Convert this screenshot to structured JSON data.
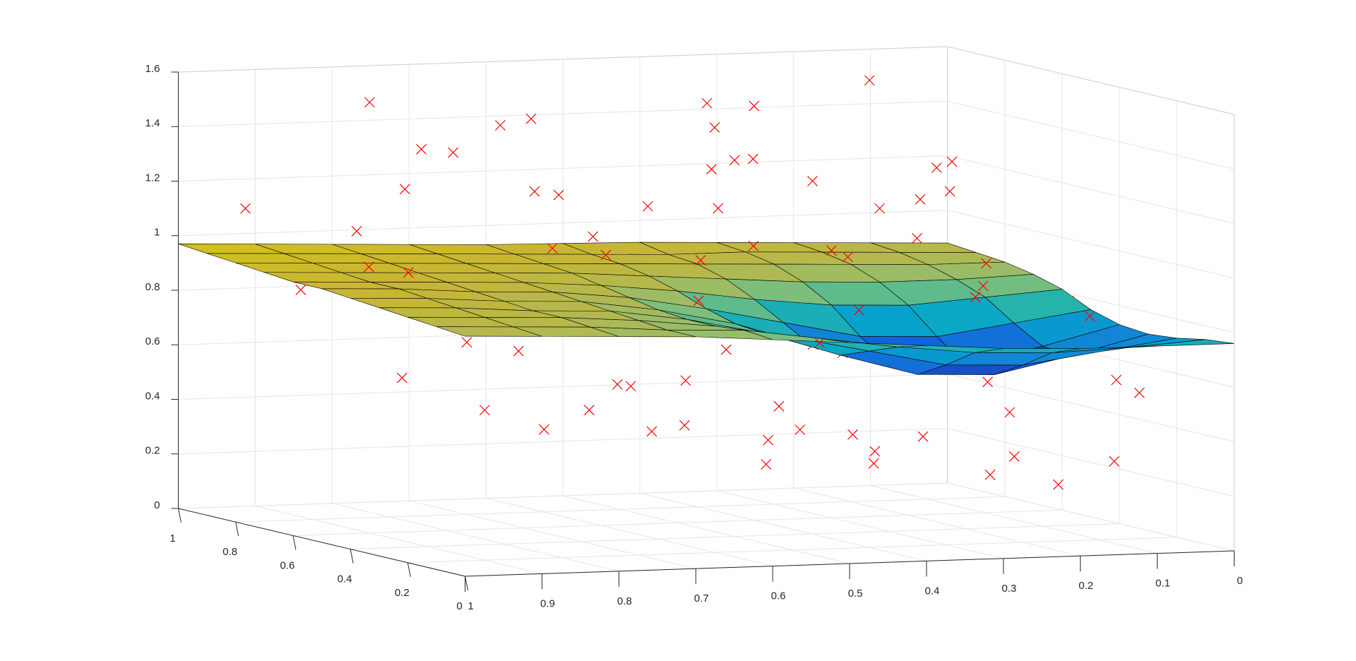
{
  "chart_data": {
    "type": "surface",
    "xlim": [
      0,
      1
    ],
    "xticks": [
      0,
      0.1,
      0.2,
      0.3,
      0.4,
      0.5,
      0.6,
      0.7,
      0.8,
      0.9,
      1
    ],
    "ylim": [
      0,
      1
    ],
    "yticks": [
      0,
      0.2,
      0.4,
      0.6,
      0.8,
      1
    ],
    "zlim": [
      0,
      1.6
    ],
    "zticks": [
      0,
      0.2,
      0.4,
      0.6,
      0.8,
      1,
      1.2,
      1.4,
      1.6
    ],
    "grid": true,
    "colormap": [
      "#352a87",
      "#0f5cdd",
      "#1481d6",
      "#06a4ca",
      "#2eb7a4",
      "#87bf77",
      "#b5b84e",
      "#c9b630",
      "#d4c21c"
    ],
    "edge_color": "#000000",
    "surface": {
      "x": [
        0,
        0.1,
        0.2,
        0.3,
        0.4,
        0.5,
        0.6,
        0.7,
        0.8,
        0.9,
        1
      ],
      "y": [
        0,
        0.1,
        0.2,
        0.3,
        0.4,
        0.5,
        0.6,
        0.7,
        0.8,
        0.9,
        1
      ],
      "z": [
        [
          0.76,
          0.76,
          0.76,
          0.77,
          0.79,
          0.81,
          0.83,
          0.85,
          0.86,
          0.87,
          0.88
        ],
        [
          0.75,
          0.73,
          0.72,
          0.73,
          0.76,
          0.8,
          0.84,
          0.85,
          0.87,
          0.88,
          0.89
        ],
        [
          0.73,
          0.69,
          0.65,
          0.66,
          0.72,
          0.78,
          0.83,
          0.86,
          0.88,
          0.89,
          0.9
        ],
        [
          0.72,
          0.65,
          0.59,
          0.6,
          0.68,
          0.77,
          0.83,
          0.87,
          0.88,
          0.9,
          0.91
        ],
        [
          0.73,
          0.66,
          0.6,
          0.62,
          0.69,
          0.78,
          0.84,
          0.88,
          0.89,
          0.91,
          0.92
        ],
        [
          0.76,
          0.72,
          0.68,
          0.69,
          0.75,
          0.81,
          0.86,
          0.89,
          0.9,
          0.92,
          0.93
        ],
        [
          0.81,
          0.79,
          0.77,
          0.78,
          0.81,
          0.85,
          0.88,
          0.9,
          0.91,
          0.92,
          0.93
        ],
        [
          0.84,
          0.83,
          0.83,
          0.84,
          0.86,
          0.88,
          0.9,
          0.91,
          0.92,
          0.93,
          0.94
        ],
        [
          0.86,
          0.86,
          0.87,
          0.88,
          0.89,
          0.9,
          0.91,
          0.92,
          0.93,
          0.94,
          0.95
        ],
        [
          0.87,
          0.88,
          0.89,
          0.9,
          0.9,
          0.91,
          0.92,
          0.93,
          0.94,
          0.95,
          0.96
        ],
        [
          0.88,
          0.89,
          0.9,
          0.91,
          0.92,
          0.925,
          0.93,
          0.94,
          0.95,
          0.96,
          0.97
        ]
      ]
    },
    "scatter": {
      "color": "#ff0000",
      "x": [
        0.95,
        0.9,
        0.85,
        0.8,
        0.78,
        0.72,
        0.7,
        0.66,
        0.62,
        0.6,
        0.57,
        0.55,
        0.52,
        0.5,
        0.48,
        0.45,
        0.42,
        0.4,
        0.38,
        0.35,
        0.33,
        0.3,
        0.28,
        0.25,
        0.22,
        0.2,
        0.18,
        0.15,
        0.12,
        0.1,
        0.08,
        0.05,
        0.03,
        0.02,
        0.97,
        0.88,
        0.82,
        0.75,
        0.68,
        0.64,
        0.58,
        0.53,
        0.47,
        0.43,
        0.37,
        0.32,
        0.27,
        0.23,
        0.17,
        0.13,
        0.07,
        0.04,
        0.92,
        0.86,
        0.74,
        0.69,
        0.61,
        0.56,
        0.49,
        0.41,
        0.36,
        0.29,
        0.21,
        0.14,
        0.09,
        0.06,
        0.99,
        0.83,
        0.71,
        0.63,
        0.51,
        0.44,
        0.34,
        0.26,
        0.19,
        0.11,
        0.01,
        0.77,
        0.59,
        0.39
      ],
      "y": [
        0.9,
        0.2,
        0.6,
        0.35,
        0.8,
        0.1,
        0.5,
        0.7,
        0.25,
        0.95,
        0.4,
        0.15,
        0.65,
        0.85,
        0.3,
        0.05,
        0.55,
        0.75,
        0.45,
        0.9,
        0.2,
        0.6,
        0.1,
        0.8,
        0.4,
        0.7,
        0.3,
        0.5,
        0.95,
        0.15,
        0.65,
        0.85,
        0.25,
        0.45,
        0.3,
        0.7,
        0.05,
        0.55,
        0.9,
        0.2,
        0.8,
        0.35,
        0.6,
        0.1,
        0.75,
        0.45,
        0.95,
        0.15,
        0.65,
        0.4,
        0.85,
        0.5,
        0.55,
        0.1,
        0.85,
        0.3,
        0.6,
        0.95,
        0.2,
        0.7,
        0.4,
        0.9,
        0.05,
        0.5,
        0.75,
        0.25,
        0.6,
        0.45,
        0.2,
        0.75,
        0.5,
        0.15,
        0.9,
        0.65,
        0.35,
        0.8,
        0.55,
        0.95,
        0.05,
        0.4
      ],
      "z": [
        1.12,
        0.55,
        0.95,
        0.72,
        1.2,
        0.48,
        1.05,
        0.88,
        0.62,
        1.38,
        0.78,
        0.42,
        1.15,
        0.92,
        0.5,
        0.35,
        1.02,
        1.25,
        0.68,
        1.45,
        0.4,
        0.98,
        0.28,
        1.18,
        0.6,
        1.1,
        0.45,
        0.82,
        1.5,
        0.3,
        0.9,
        1.22,
        0.52,
        0.75,
        0.65,
        1.08,
        0.58,
        0.85,
        1.3,
        0.47,
        1.16,
        0.7,
        0.96,
        0.38,
        1.28,
        0.8,
        1.42,
        0.33,
        1.0,
        0.63,
        1.2,
        0.74,
        0.99,
        0.5,
        1.33,
        0.6,
        1.06,
        1.4,
        0.44,
        1.12,
        0.66,
        1.24,
        0.25,
        0.86,
        1.14,
        0.57,
        0.9,
        0.73,
        0.62,
        1.19,
        0.84,
        0.43,
        1.36,
        0.94,
        0.55,
        1.1,
        0.78,
        1.48,
        0.36,
        0.7
      ]
    }
  }
}
